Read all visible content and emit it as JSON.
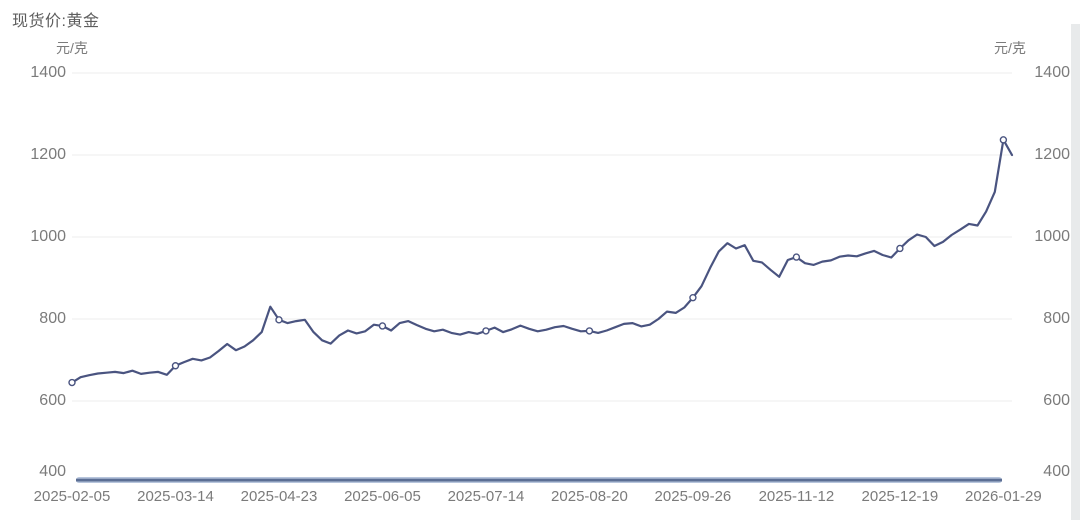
{
  "header": {
    "title": "现货价:黄金"
  },
  "axes": {
    "unit_left": "元/克",
    "unit_right": "元/克",
    "y_ticks": [
      1400,
      1200,
      1000,
      800,
      600,
      400
    ],
    "x_tick_labels": [
      "2025-02-05",
      "2025-03-14",
      "2025-04-23",
      "2025-06-05",
      "2025-07-14",
      "2025-08-20",
      "2025-09-26",
      "2025-11-12",
      "2025-12-19",
      "2026-01-29"
    ]
  },
  "chart_data": {
    "type": "line",
    "title": "现货价:黄金",
    "ylabel": "元/克",
    "ylim": [
      400,
      1400
    ],
    "grid": "horizontal",
    "legend_position": "none",
    "marker": "open-circle-at-ticks",
    "tick_point_interval": 12,
    "x_tick_labels": [
      "2025-02-05",
      "2025-03-14",
      "2025-04-23",
      "2025-06-05",
      "2025-07-14",
      "2025-08-20",
      "2025-09-26",
      "2025-11-12",
      "2025-12-19",
      "2026-01-29"
    ],
    "series": [
      {
        "name": "现货价:黄金",
        "values": [
          645,
          658,
          663,
          667,
          669,
          671,
          668,
          674,
          666,
          669,
          671,
          664,
          686,
          695,
          703,
          699,
          706,
          722,
          739,
          724,
          733,
          748,
          768,
          830,
          798,
          790,
          795,
          798,
          768,
          748,
          740,
          760,
          772,
          765,
          770,
          786,
          783,
          772,
          790,
          795,
          785,
          776,
          770,
          774,
          766,
          762,
          768,
          764,
          771,
          779,
          768,
          775,
          784,
          776,
          770,
          774,
          780,
          783,
          776,
          770,
          771,
          766,
          772,
          780,
          788,
          790,
          782,
          786,
          800,
          818,
          815,
          828,
          852,
          880,
          925,
          965,
          985,
          972,
          980,
          942,
          938,
          920,
          903,
          944,
          951,
          936,
          932,
          940,
          943,
          952,
          955,
          953,
          960,
          966,
          956,
          950,
          972,
          992,
          1006,
          1000,
          978,
          988,
          1005,
          1018,
          1032,
          1028,
          1062,
          1110,
          1237,
          1200
        ]
      }
    ],
    "tick_point_values": {
      "2025-02-05": 645,
      "2025-03-14": 686,
      "2025-04-23": 798,
      "2025-06-05": 783,
      "2025-07-14": 771,
      "2025-08-20": 771,
      "2025-09-26": 852,
      "2025-11-12": 951,
      "2025-12-19": 972,
      "2026-01-29": 1237
    }
  },
  "colors": {
    "line": "#4a5480",
    "marker_fill": "#ffffff",
    "grid": "#ececec",
    "axis_label": "#7b7b7b",
    "title": "#5d5d5d",
    "slider_track": "#b7c5dc",
    "slider_bar": "#5b6e94",
    "edge_strip": "#e8eaeb"
  },
  "scrollbar": {
    "state": "full-width"
  }
}
